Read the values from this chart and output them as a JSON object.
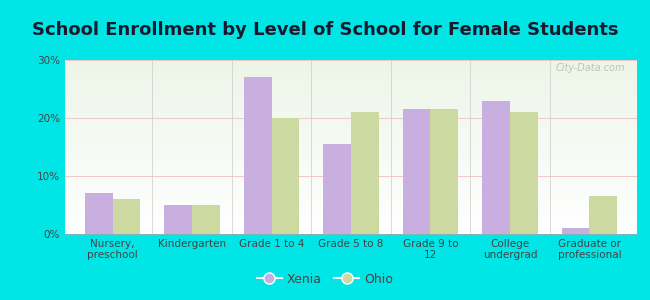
{
  "title": "School Enrollment by Level of School for Female Students",
  "categories": [
    "Nursery,\npreschool",
    "Kindergarten",
    "Grade 1 to 4",
    "Grade 5 to 8",
    "Grade 9 to\n12",
    "College\nundergrad",
    "Graduate or\nprofessional"
  ],
  "xenia_values": [
    7.0,
    5.0,
    27.0,
    15.5,
    21.5,
    23.0,
    1.0
  ],
  "ohio_values": [
    6.0,
    5.0,
    20.0,
    21.0,
    21.5,
    21.0,
    6.5
  ],
  "xenia_color": "#c9aee0",
  "ohio_color": "#ccd9a0",
  "background_outer": "#00e5e5",
  "background_inner_top": "#edf5e8",
  "background_inner_bottom": "#ffffff",
  "ylim": [
    0,
    30
  ],
  "yticks": [
    0,
    10,
    20,
    30
  ],
  "ytick_labels": [
    "0%",
    "10%",
    "20%",
    "30%"
  ],
  "legend_xenia": "Xenia",
  "legend_ohio": "Ohio",
  "bar_width": 0.35,
  "title_fontsize": 13,
  "tick_fontsize": 7.5,
  "legend_fontsize": 9,
  "watermark": "City-Data.com"
}
